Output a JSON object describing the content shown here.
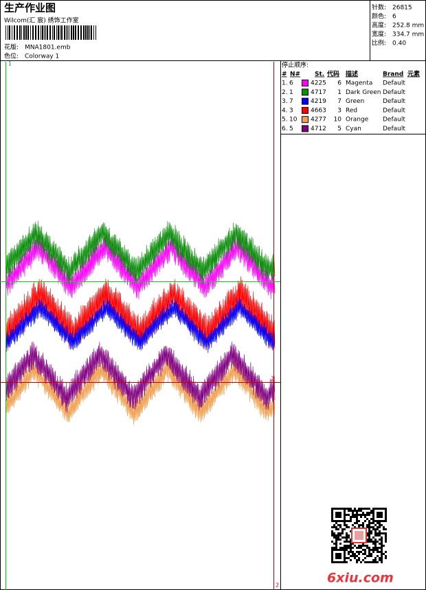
{
  "header": {
    "title": "生产作业图",
    "subtitle": "Wilcom(汇 宸) 绣饰工作室",
    "design_label": "花版:",
    "design": "MNA1801.emb",
    "colorway_label": "色位:",
    "colorway": "Colorway 1"
  },
  "info": [
    {
      "label": "针数:",
      "value": "26815"
    },
    {
      "label": "颜色:",
      "value": "6"
    },
    {
      "label": "高度:",
      "value": "252.8 mm"
    },
    {
      "label": "宽度:",
      "value": "334.7 mm"
    },
    {
      "label": "比例:",
      "value": "0.40"
    }
  ],
  "preview": {
    "markers": [
      "1",
      "2",
      "2"
    ]
  },
  "stop_sequence": {
    "title": "停止顺序:",
    "columns": [
      "#",
      "N#",
      "St.",
      "代码",
      "描述",
      "Brand",
      "元素"
    ],
    "rows": [
      {
        "num": "1.",
        "n": "6",
        "color": "#ff00ff",
        "st": "4225",
        "code": "6",
        "desc": "Magenta",
        "brand": "Default"
      },
      {
        "num": "2.",
        "n": "1",
        "color": "#0b8c0b",
        "st": "4717",
        "code": "1",
        "desc": "Dark Green",
        "brand": "Default"
      },
      {
        "num": "3.",
        "n": "7",
        "color": "#0000ff",
        "st": "4219",
        "code": "7",
        "desc": "Green",
        "brand": "Default"
      },
      {
        "num": "4.",
        "n": "3",
        "color": "#ff0000",
        "st": "4663",
        "code": "3",
        "desc": "Red",
        "brand": "Default"
      },
      {
        "num": "5.",
        "n": "10",
        "color": "#f0a050",
        "st": "4277",
        "code": "10",
        "desc": "Orange",
        "brand": "Default"
      },
      {
        "num": "6.",
        "n": "5",
        "color": "#800080",
        "st": "4712",
        "code": "5",
        "desc": "Cyan",
        "brand": "Default"
      }
    ]
  },
  "watermark": "6xiu.com"
}
